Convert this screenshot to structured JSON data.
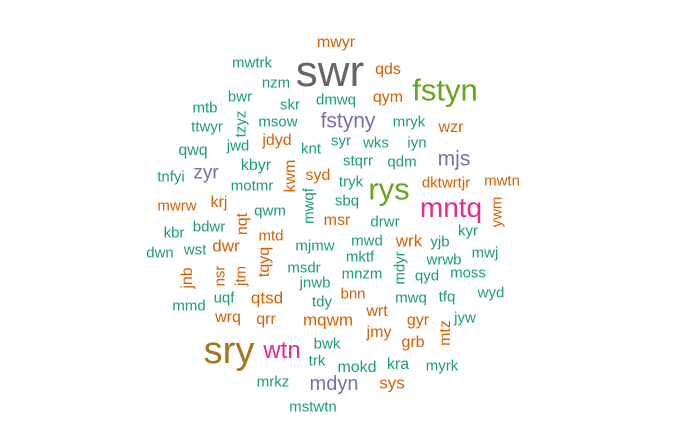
{
  "colors": {
    "teal": "#1b9e77",
    "orange": "#d95f02",
    "purple": "#7570b3",
    "pink": "#e7298a",
    "green": "#66a61e",
    "gold": "#a6761d",
    "gray": "#666666"
  },
  "words": [
    {
      "text": "swr",
      "color": "gray"
    },
    {
      "text": "sry",
      "color": "gold"
    },
    {
      "text": "fstyn",
      "color": "green"
    },
    {
      "text": "rys",
      "color": "green"
    },
    {
      "text": "mntq",
      "color": "pink"
    },
    {
      "text": "wtn",
      "color": "pink"
    },
    {
      "text": "fstyny",
      "color": "purple"
    },
    {
      "text": "mjs",
      "color": "purple"
    },
    {
      "text": "mdyn",
      "color": "purple"
    },
    {
      "text": "zyr",
      "color": "purple"
    },
    {
      "text": "mwyr",
      "color": "orange"
    },
    {
      "text": "qds",
      "color": "orange"
    },
    {
      "text": "qym",
      "color": "orange"
    },
    {
      "text": "mwtrk",
      "color": "teal"
    },
    {
      "text": "nzm",
      "color": "teal"
    },
    {
      "text": "bwr",
      "color": "teal"
    },
    {
      "text": "skr",
      "color": "teal"
    },
    {
      "text": "dmwq",
      "color": "teal"
    },
    {
      "text": "mtb",
      "color": "teal"
    },
    {
      "text": "msow",
      "color": "teal"
    },
    {
      "text": "ttwyr",
      "color": "teal"
    },
    {
      "text": "tzyz",
      "color": "teal"
    },
    {
      "text": "mryk",
      "color": "teal"
    },
    {
      "text": "wzr",
      "color": "orange"
    },
    {
      "text": "qwq",
      "color": "teal"
    },
    {
      "text": "jwd",
      "color": "teal"
    },
    {
      "text": "jdyd",
      "color": "orange"
    },
    {
      "text": "knt",
      "color": "teal"
    },
    {
      "text": "syr",
      "color": "teal"
    },
    {
      "text": "wks",
      "color": "teal"
    },
    {
      "text": "iyn",
      "color": "teal"
    },
    {
      "text": "kbyr",
      "color": "teal"
    },
    {
      "text": "stqrr",
      "color": "teal"
    },
    {
      "text": "qdm",
      "color": "teal"
    },
    {
      "text": "tnfyi",
      "color": "teal"
    },
    {
      "text": "kwm",
      "color": "orange"
    },
    {
      "text": "syd",
      "color": "orange"
    },
    {
      "text": "motmr",
      "color": "teal"
    },
    {
      "text": "tryk",
      "color": "teal"
    },
    {
      "text": "dktwrtjr",
      "color": "orange"
    },
    {
      "text": "mwtn",
      "color": "orange"
    },
    {
      "text": "mwqf",
      "color": "teal"
    },
    {
      "text": "sbq",
      "color": "teal"
    },
    {
      "text": "mwrw",
      "color": "orange"
    },
    {
      "text": "krj",
      "color": "orange"
    },
    {
      "text": "qwm",
      "color": "teal"
    },
    {
      "text": "ywm",
      "color": "orange"
    },
    {
      "text": "nqt",
      "color": "orange"
    },
    {
      "text": "msr",
      "color": "orange"
    },
    {
      "text": "drwr",
      "color": "teal"
    },
    {
      "text": "kbr",
      "color": "teal"
    },
    {
      "text": "bdwr",
      "color": "teal"
    },
    {
      "text": "mtd",
      "color": "orange"
    },
    {
      "text": "kyr",
      "color": "teal"
    },
    {
      "text": "wst",
      "color": "teal"
    },
    {
      "text": "dwr",
      "color": "orange"
    },
    {
      "text": "mjmw",
      "color": "teal"
    },
    {
      "text": "mwd",
      "color": "teal"
    },
    {
      "text": "wrk",
      "color": "orange"
    },
    {
      "text": "yjb",
      "color": "teal"
    },
    {
      "text": "dwn",
      "color": "teal"
    },
    {
      "text": "mktf",
      "color": "teal"
    },
    {
      "text": "mwj",
      "color": "teal"
    },
    {
      "text": "jnb",
      "color": "orange"
    },
    {
      "text": "nsr",
      "color": "orange"
    },
    {
      "text": "jtm",
      "color": "orange"
    },
    {
      "text": "tqyq",
      "color": "orange"
    },
    {
      "text": "msdr",
      "color": "teal"
    },
    {
      "text": "mnzm",
      "color": "teal"
    },
    {
      "text": "mdyr",
      "color": "teal"
    },
    {
      "text": "qyd",
      "color": "teal"
    },
    {
      "text": "moss",
      "color": "teal"
    },
    {
      "text": "jnwb",
      "color": "teal"
    },
    {
      "text": "wrwb",
      "color": "teal"
    },
    {
      "text": "mmd",
      "color": "teal"
    },
    {
      "text": "uqf",
      "color": "teal"
    },
    {
      "text": "qtsd",
      "color": "orange"
    },
    {
      "text": "bnn",
      "color": "orange"
    },
    {
      "text": "mwq",
      "color": "teal"
    },
    {
      "text": "tfq",
      "color": "teal"
    },
    {
      "text": "wyd",
      "color": "teal"
    },
    {
      "text": "tdy",
      "color": "teal"
    },
    {
      "text": "wrq",
      "color": "orange"
    },
    {
      "text": "qrr",
      "color": "orange"
    },
    {
      "text": "mqwm",
      "color": "orange"
    },
    {
      "text": "wrt",
      "color": "orange"
    },
    {
      "text": "mtz",
      "color": "orange"
    },
    {
      "text": "jyw",
      "color": "teal"
    },
    {
      "text": "gyr",
      "color": "orange"
    },
    {
      "text": "jmy",
      "color": "orange"
    },
    {
      "text": "grb",
      "color": "orange"
    },
    {
      "text": "bwk",
      "color": "teal"
    },
    {
      "text": "trk",
      "color": "teal"
    },
    {
      "text": "mokd",
      "color": "teal"
    },
    {
      "text": "kra",
      "color": "teal"
    },
    {
      "text": "myrk",
      "color": "teal"
    },
    {
      "text": "mrkz",
      "color": "teal"
    },
    {
      "text": "sys",
      "color": "orange"
    },
    {
      "text": "mstwtn",
      "color": "teal"
    }
  ]
}
